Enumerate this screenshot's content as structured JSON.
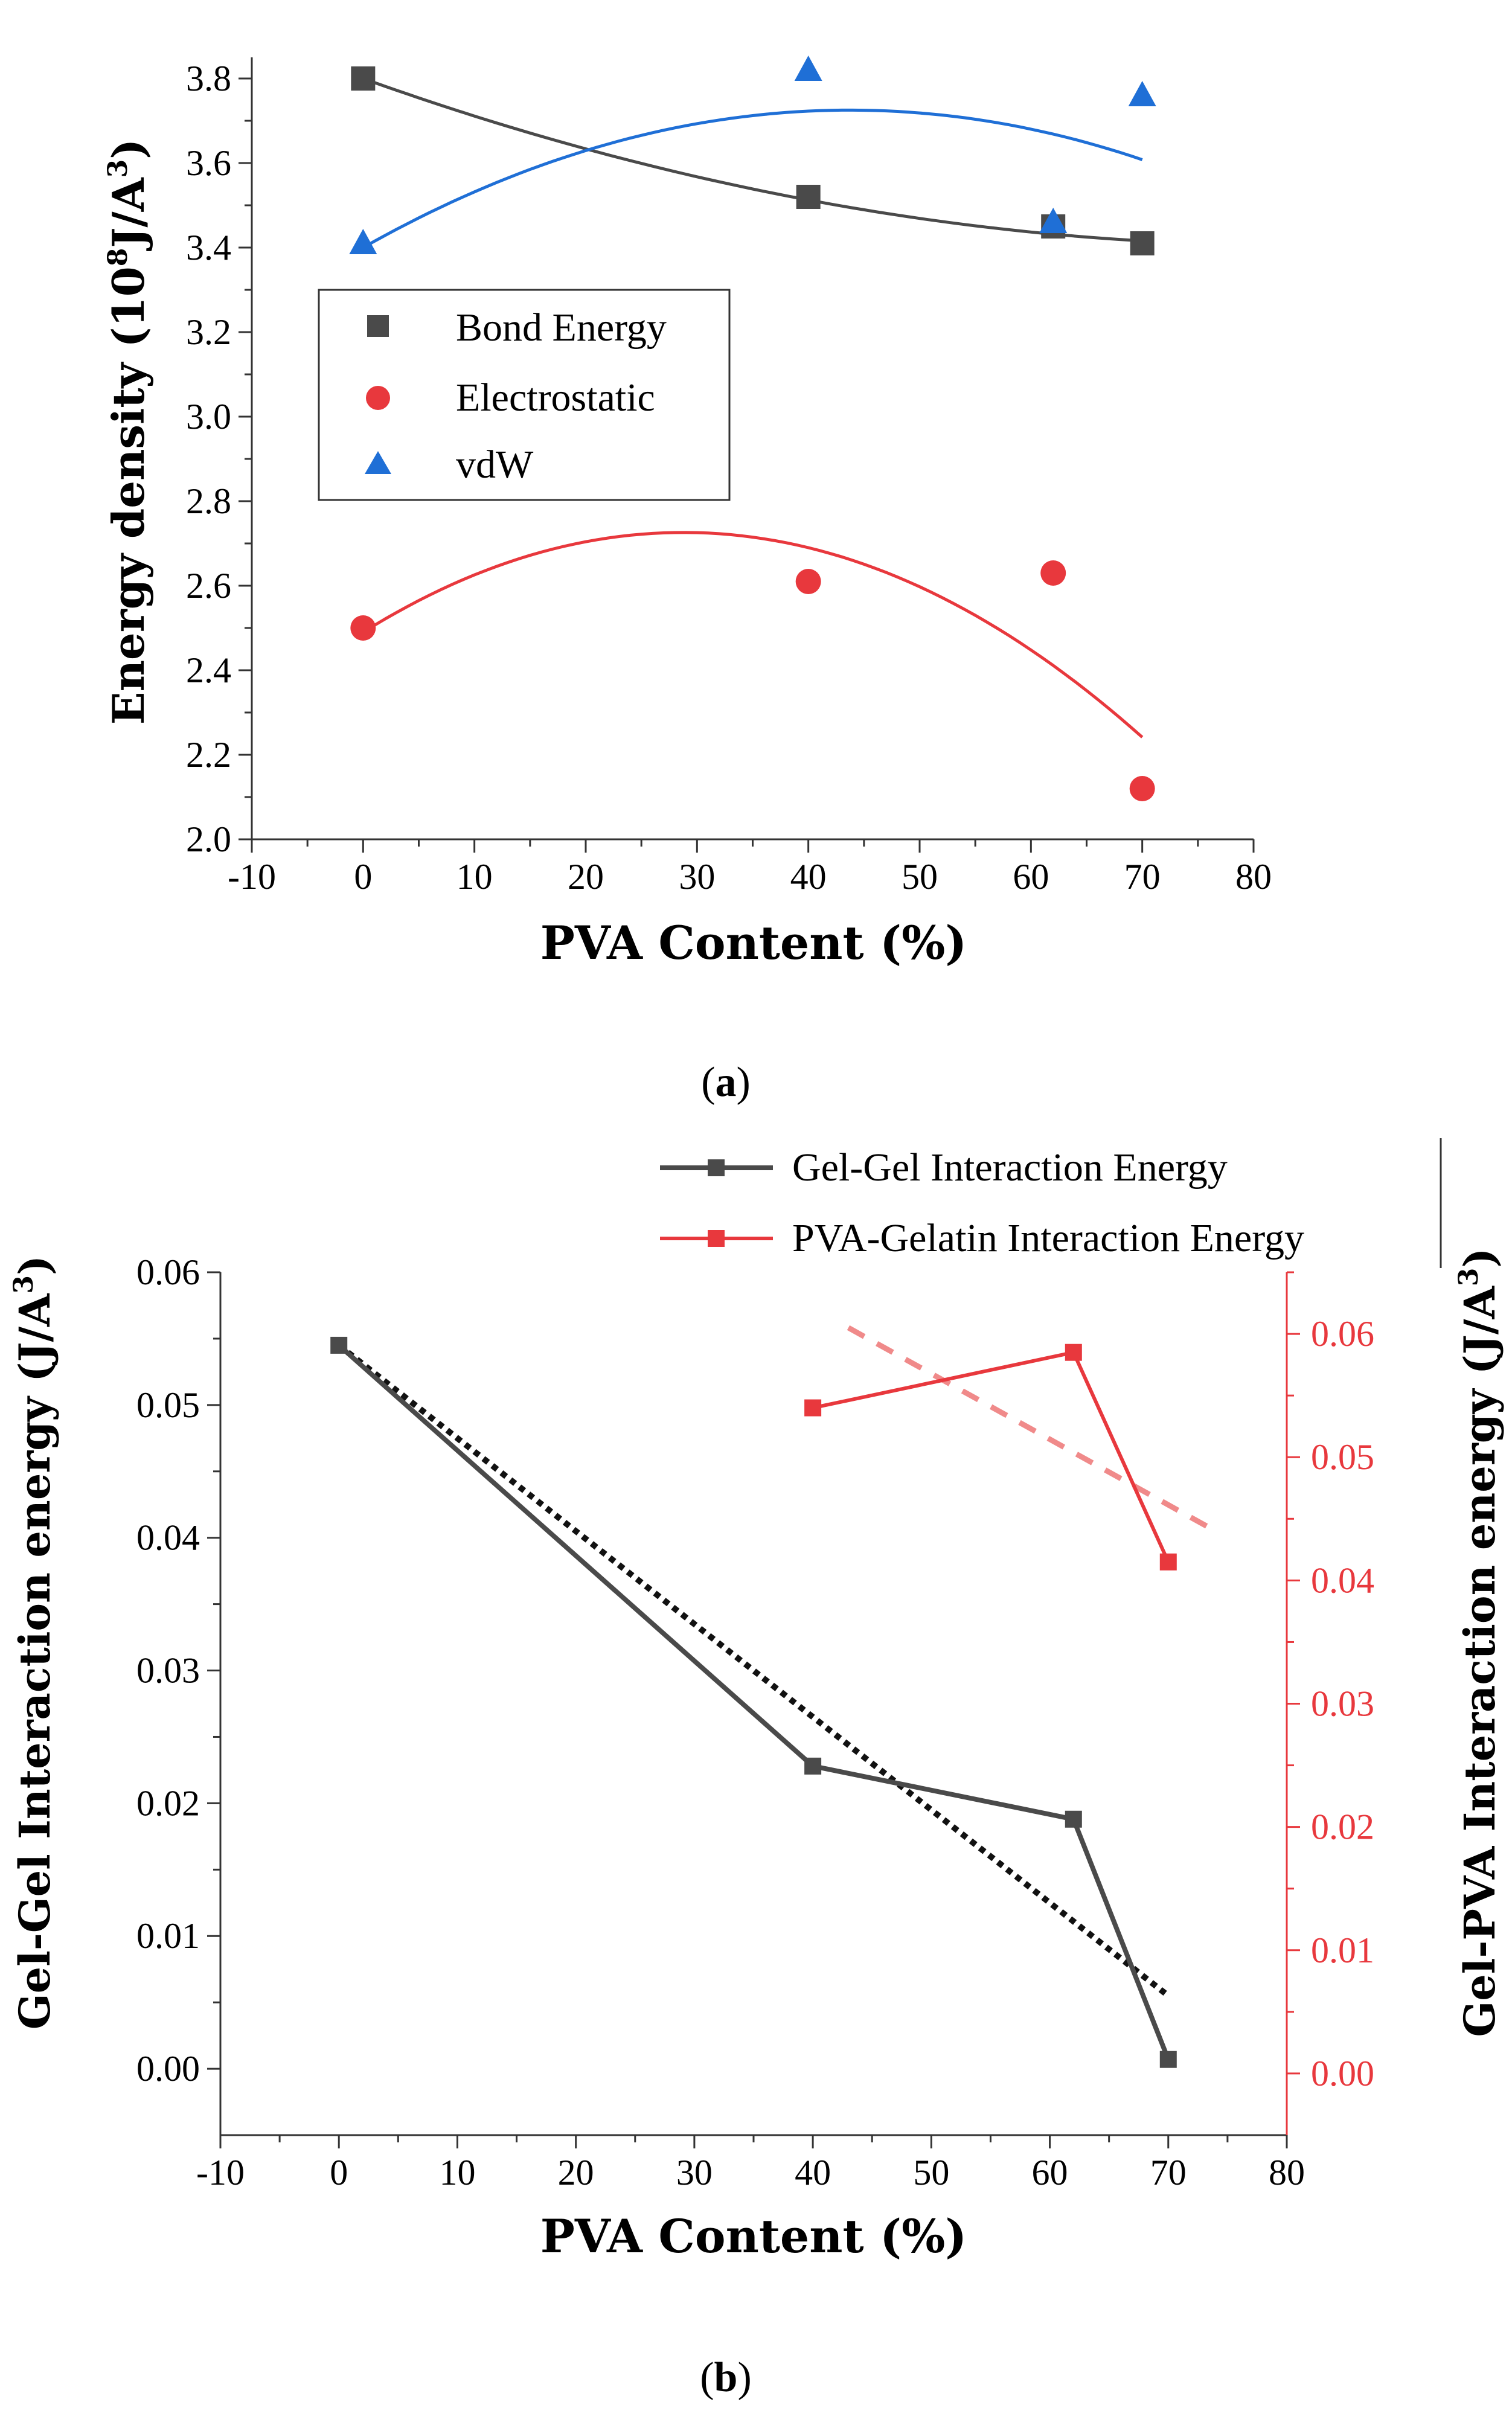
{
  "chart_data": [
    {
      "panel": "a",
      "type": "scatter",
      "caption_prefix": "(",
      "caption_letter": "a",
      "caption_suffix": ")",
      "xlabel": "PVA Content (%)",
      "ylabel_main": "Energy density (10",
      "ylabel_exp": "8",
      "ylabel_unit": "J/A",
      "ylabel_unit_exp": "3",
      "ylabel_close": ")",
      "xlim": [
        -10,
        80
      ],
      "ylim": [
        2.0,
        3.8
      ],
      "xticks": [
        "-10",
        "0",
        "10",
        "20",
        "30",
        "40",
        "50",
        "60",
        "70",
        "80"
      ],
      "yticks": [
        "2.0",
        "2.2",
        "2.4",
        "2.6",
        "2.8",
        "3.0",
        "3.2",
        "3.4",
        "3.6",
        "3.8"
      ],
      "series": [
        {
          "name": "Bond Energy",
          "marker": "square",
          "color": "#4a4a4a",
          "x": [
            0,
            40,
            62,
            70
          ],
          "y": [
            3.8,
            3.52,
            3.45,
            3.41
          ],
          "fit": [
            3.8,
            -0.00945,
            5.66e-05
          ]
        },
        {
          "name": "Electrostatic",
          "marker": "circle",
          "color": "#e8383d",
          "x": [
            0,
            40,
            62,
            70
          ],
          "y": [
            2.5,
            2.61,
            2.63,
            2.12
          ],
          "fit": [
            2.49,
            0.0164,
            -0.000285
          ]
        },
        {
          "name": "vdW",
          "marker": "triangle",
          "color": "#1f6fd6",
          "x": [
            0,
            40,
            62,
            70
          ],
          "y": [
            3.41,
            3.82,
            3.46,
            3.76
          ],
          "fit": [
            3.4,
            0.01487,
            -0.00017
          ]
        }
      ]
    },
    {
      "panel": "b",
      "type": "line",
      "caption_prefix": "(",
      "caption_letter": "b",
      "caption_suffix": ")",
      "xlabel": "PVA Content (%)",
      "ylabel_left": "Gel-Gel Interaction energy (J/A",
      "ylabel_left_exp": "3",
      "ylabel_left_close": ")",
      "ylabel_right": "Gel-PVA Interaction energy (J/A",
      "ylabel_right_exp": "3",
      "ylabel_right_close": ")",
      "xlim": [
        -10,
        80
      ],
      "ylim_left": [
        -0.005,
        0.06
      ],
      "ylim_right": [
        -0.005,
        0.065
      ],
      "xticks": [
        "-10",
        "0",
        "10",
        "20",
        "30",
        "40",
        "50",
        "60",
        "70",
        "80"
      ],
      "yticks_left": [
        "0.00",
        "0.01",
        "0.02",
        "0.03",
        "0.04",
        "0.05",
        "0.06"
      ],
      "yticks_right": [
        "0.00",
        "0.01",
        "0.02",
        "0.03",
        "0.04",
        "0.05",
        "0.06"
      ],
      "right_axis_color": "#e8383d",
      "series": [
        {
          "name": "Gel-Gel Interaction Energy",
          "axis": "left",
          "color": "#4a4a4a",
          "x": [
            0,
            40,
            62,
            70
          ],
          "y": [
            0.0545,
            0.0228,
            0.0188,
            0.0007
          ],
          "trend": [
            [
              0,
              0.0545
            ],
            [
              70,
              0.0055
            ]
          ]
        },
        {
          "name": "PVA-Gelatin Interaction Energy",
          "axis": "right",
          "color": "#e8383d",
          "x": [
            40,
            62,
            70
          ],
          "y": [
            0.054,
            0.0585,
            0.0415
          ],
          "trend": [
            [
              43,
              0.0605
            ],
            [
              74,
              0.044
            ]
          ]
        }
      ]
    }
  ]
}
